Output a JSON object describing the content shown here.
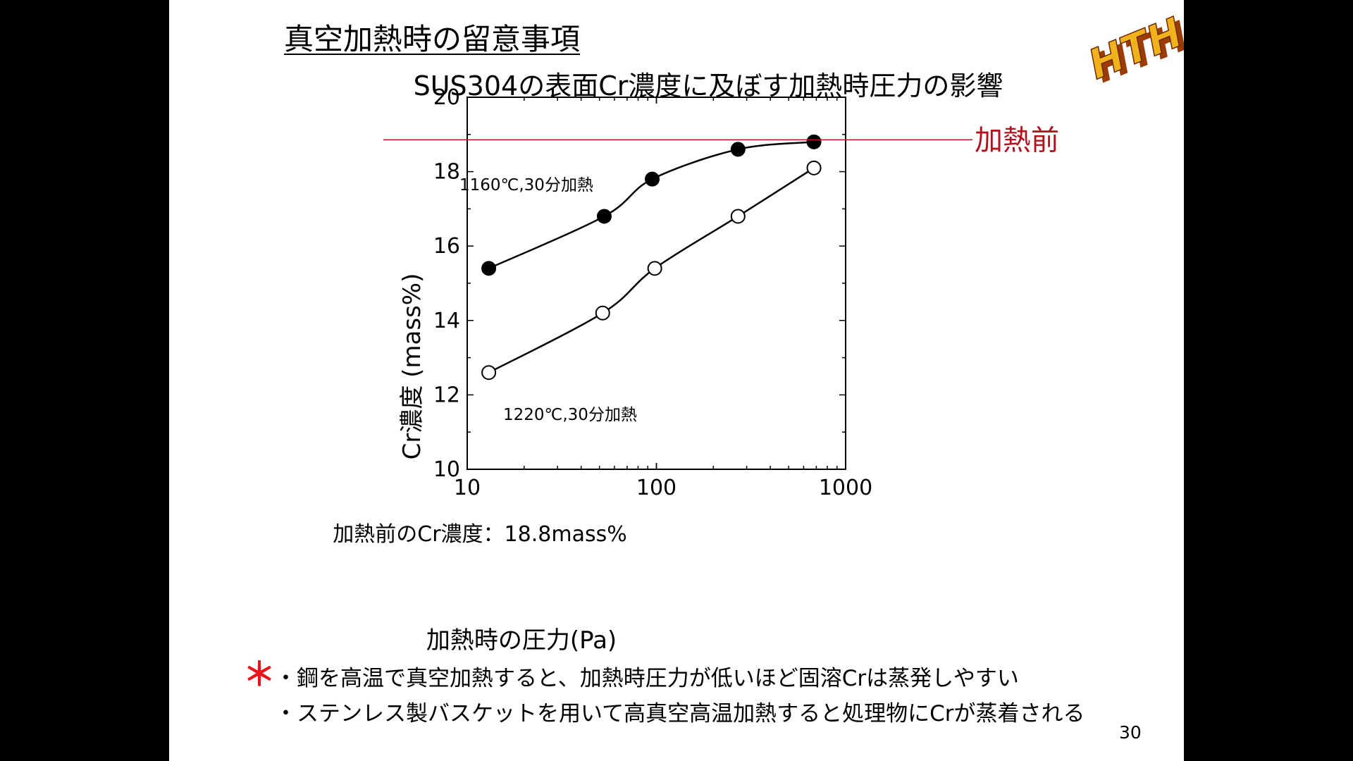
{
  "slide": {
    "heading": "真空加熱時の留意事項",
    "logo_text": "HTH",
    "note_mark": "＊",
    "notes": [
      "・鋼を高温で真空加熱すると、加熱時圧力が低いほど固溶Crは蒸発しやすい",
      "・ステンレス製バスケットを用いて高真空高温加熱すると処理物にCrが蒸着される"
    ],
    "page_number": "30"
  },
  "colors": {
    "reference_line": "#b3121d",
    "note_mark": "#e8141b",
    "logo_fill": "#f2b21c",
    "logo_shadow": "#9b3b06"
  },
  "chart_data": {
    "type": "line",
    "title": "SUS304の表面Cr濃度に及ぼす加熱時圧力の影響",
    "xlabel": "加熱時の圧力(Pa)",
    "ylabel": "Cr濃度 (mass%)",
    "x_scale": "log",
    "xlim": [
      10,
      1000
    ],
    "ylim": [
      10,
      20
    ],
    "x_ticks": [
      "10",
      "100",
      "1000"
    ],
    "y_ticks": [
      "10",
      "12",
      "14",
      "16",
      "18",
      "20"
    ],
    "series": [
      {
        "name": "1160℃,30分加熱",
        "marker": "filled-circle",
        "x": [
          13,
          53,
          95,
          270,
          680
        ],
        "y": [
          15.4,
          16.8,
          17.8,
          18.6,
          18.8
        ]
      },
      {
        "name": "1220℃,30分加熱",
        "marker": "open-circle",
        "x": [
          13,
          52,
          98,
          270,
          680
        ],
        "y": [
          12.6,
          14.2,
          15.4,
          16.8,
          18.1
        ]
      }
    ],
    "reference_line": {
      "label": "加熱前",
      "y": 18.8
    },
    "annotation": "加熱前のCr濃度：18.8mass%"
  }
}
